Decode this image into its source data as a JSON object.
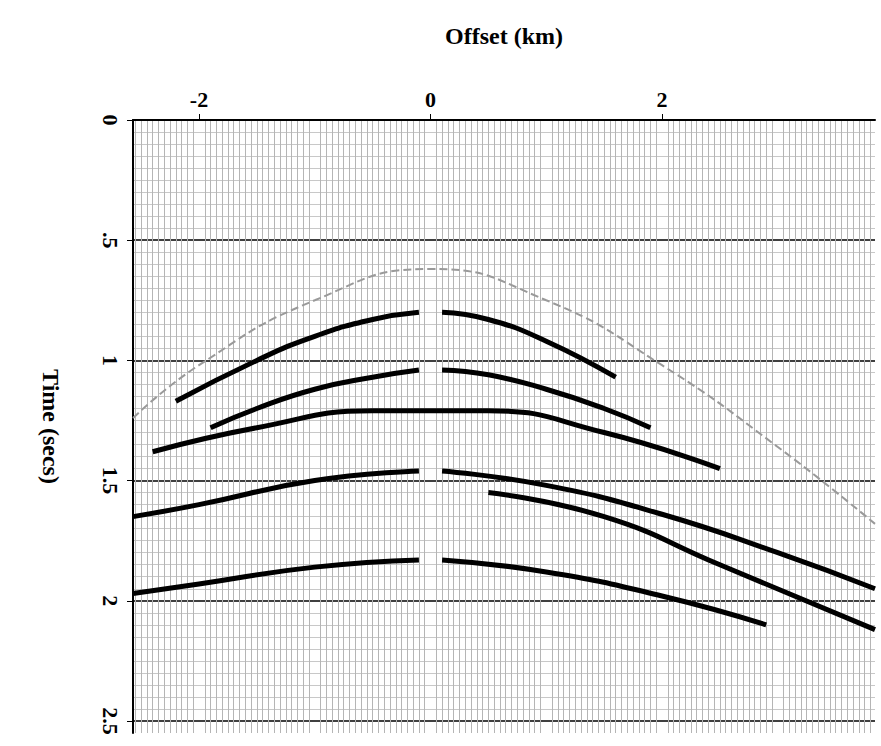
{
  "chart_data": {
    "type": "line",
    "xlabel": "Offset (km)",
    "ylabel": "Time (secs)",
    "xlim": [
      -2.57,
      3.84
    ],
    "ylim": [
      0,
      2.55
    ],
    "xticks": [
      -2,
      0,
      2
    ],
    "yticks": [
      0,
      {
        "value": 0.5,
        "label": ".5"
      },
      1,
      1.5,
      2,
      2.5
    ],
    "grid": true,
    "series": [
      {
        "color": "#9a9a9a",
        "line_style": "dashed",
        "x": [
          -2.57,
          -2,
          -1,
          0,
          1,
          2,
          3,
          3.84
        ],
        "values": [
          1.24,
          1.02,
          0.75,
          0.62,
          0.75,
          1.02,
          1.36,
          1.68
        ]
      },
      {
        "color": "#000000",
        "line_style": "solid",
        "x": [
          -2.2,
          -1.5,
          -1,
          -0.5,
          -0.1,
          0,
          0.1,
          0.5,
          1,
          1.6
        ],
        "values": [
          1.17,
          1.0,
          0.9,
          0.83,
          0.8,
          null,
          0.8,
          0.83,
          0.92,
          1.07
        ]
      },
      {
        "color": "#000000",
        "line_style": "solid",
        "x": [
          -1.9,
          -1.5,
          -1,
          -0.5,
          -0.1,
          0,
          0.1,
          0.5,
          1,
          1.5,
          1.9
        ],
        "values": [
          1.28,
          1.2,
          1.12,
          1.07,
          1.04,
          null,
          1.04,
          1.06,
          1.12,
          1.2,
          1.28
        ]
      },
      {
        "color": "#000000",
        "line_style": "solid",
        "x": [
          -2.4,
          -1.5,
          -0.5,
          0.5,
          1.5,
          2.5
        ],
        "values": [
          1.38,
          1.28,
          1.21,
          1.21,
          1.3,
          1.45
        ]
      },
      {
        "color": "#000000",
        "line_style": "solid",
        "x": [
          -2.57,
          -2,
          -1,
          -0.1,
          0,
          0.1,
          1,
          2,
          3,
          3.84
        ],
        "values": [
          1.65,
          1.6,
          1.5,
          1.46,
          null,
          1.46,
          1.52,
          1.64,
          1.8,
          1.95
        ]
      },
      {
        "color": "#000000",
        "line_style": "solid",
        "x": [
          0.5,
          1.5,
          2.5,
          3.84
        ],
        "values": [
          1.55,
          1.65,
          1.85,
          2.12
        ]
      },
      {
        "color": "#000000",
        "line_style": "solid",
        "x": [
          -2.57,
          -2,
          -1,
          -0.1,
          0,
          0.1,
          1,
          2,
          2.9
        ],
        "values": [
          1.97,
          1.93,
          1.86,
          1.83,
          null,
          1.83,
          1.88,
          1.98,
          2.1
        ]
      }
    ]
  }
}
